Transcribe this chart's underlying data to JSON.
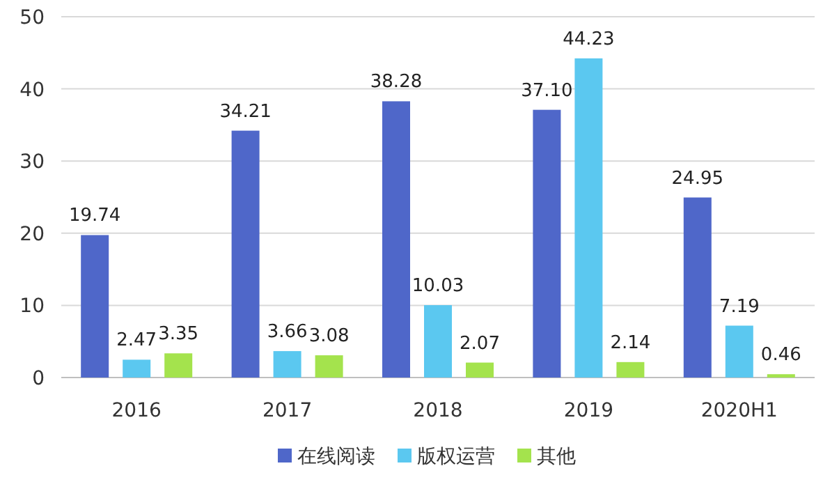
{
  "chart_data": {
    "type": "bar",
    "categories": [
      "2016",
      "2017",
      "2018",
      "2019",
      "2020H1"
    ],
    "series": [
      {
        "name": "在线阅读",
        "color": "#4f67c9",
        "values": [
          19.74,
          34.21,
          38.28,
          37.1,
          24.95
        ],
        "value_labels": [
          "19.74",
          "34.21",
          "38.28",
          "37.10",
          "24.95"
        ]
      },
      {
        "name": "版权运营",
        "color": "#5bc8f0",
        "values": [
          2.47,
          3.66,
          10.03,
          44.23,
          7.19
        ],
        "value_labels": [
          "2.47",
          "3.66",
          "10.03",
          "44.23",
          "7.19"
        ]
      },
      {
        "name": "其他",
        "color": "#a4e34d",
        "values": [
          3.35,
          3.08,
          2.07,
          2.14,
          0.46
        ],
        "value_labels": [
          "3.35",
          "3.08",
          "2.07",
          "2.14",
          "0.46"
        ]
      }
    ],
    "ylim": [
      0,
      50
    ],
    "yticks": [
      0,
      10,
      20,
      30,
      40,
      50
    ],
    "grid": "y",
    "legend": "bottom"
  }
}
